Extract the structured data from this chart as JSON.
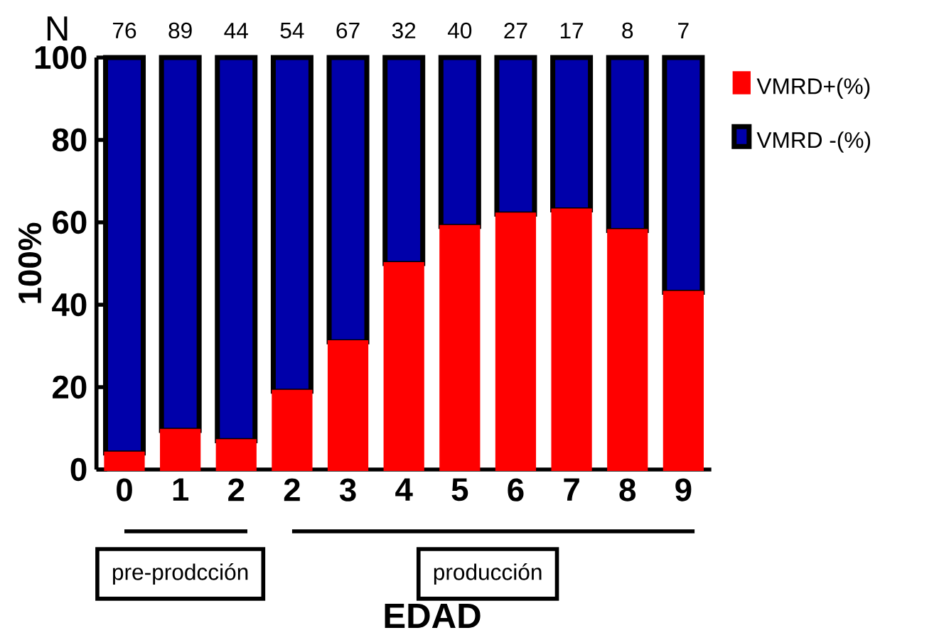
{
  "chart_data": {
    "type": "bar",
    "stacked": true,
    "xlabel": "EDAD",
    "ylabel": "100%",
    "categories": [
      "0",
      "1",
      "2",
      "2",
      "3",
      "4",
      "5",
      "6",
      "7",
      "8",
      "9"
    ],
    "series": [
      {
        "name": "VMRD+(%)",
        "color": "#ff0000",
        "values": [
          4,
          9.5,
          7,
          19,
          31,
          50,
          59,
          62,
          63,
          58,
          43
        ]
      },
      {
        "name": "VMRD -(%)",
        "color": "#0000aa",
        "values": [
          96,
          90.5,
          93,
          81,
          69,
          50,
          41,
          38,
          37,
          42,
          57
        ]
      }
    ],
    "ylim": [
      0,
      100
    ],
    "yticks": [
      0,
      20,
      40,
      60,
      80,
      100
    ],
    "legend": "top right",
    "annotations": [
      "N",
      "76",
      "89",
      "44",
      "54",
      "67",
      "32",
      "40",
      "27",
      "17",
      "8",
      "7",
      "pre-prodcción",
      "producción"
    ]
  }
}
